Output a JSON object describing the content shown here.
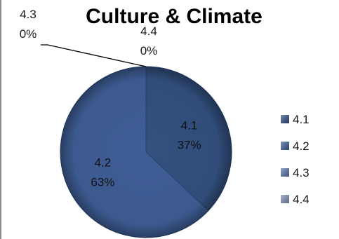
{
  "chart_data": {
    "type": "pie",
    "title": "Culture & Climate",
    "categories": [
      "4.1",
      "4.2",
      "4.3",
      "4.4"
    ],
    "values": [
      37,
      63,
      0,
      0
    ],
    "percent_labels": [
      "37%",
      "63%",
      "0%",
      "0%"
    ],
    "colors": [
      "#33507f",
      "#3f5e96",
      "#5a76ad",
      "#8592b5"
    ],
    "legend_position": "right"
  }
}
